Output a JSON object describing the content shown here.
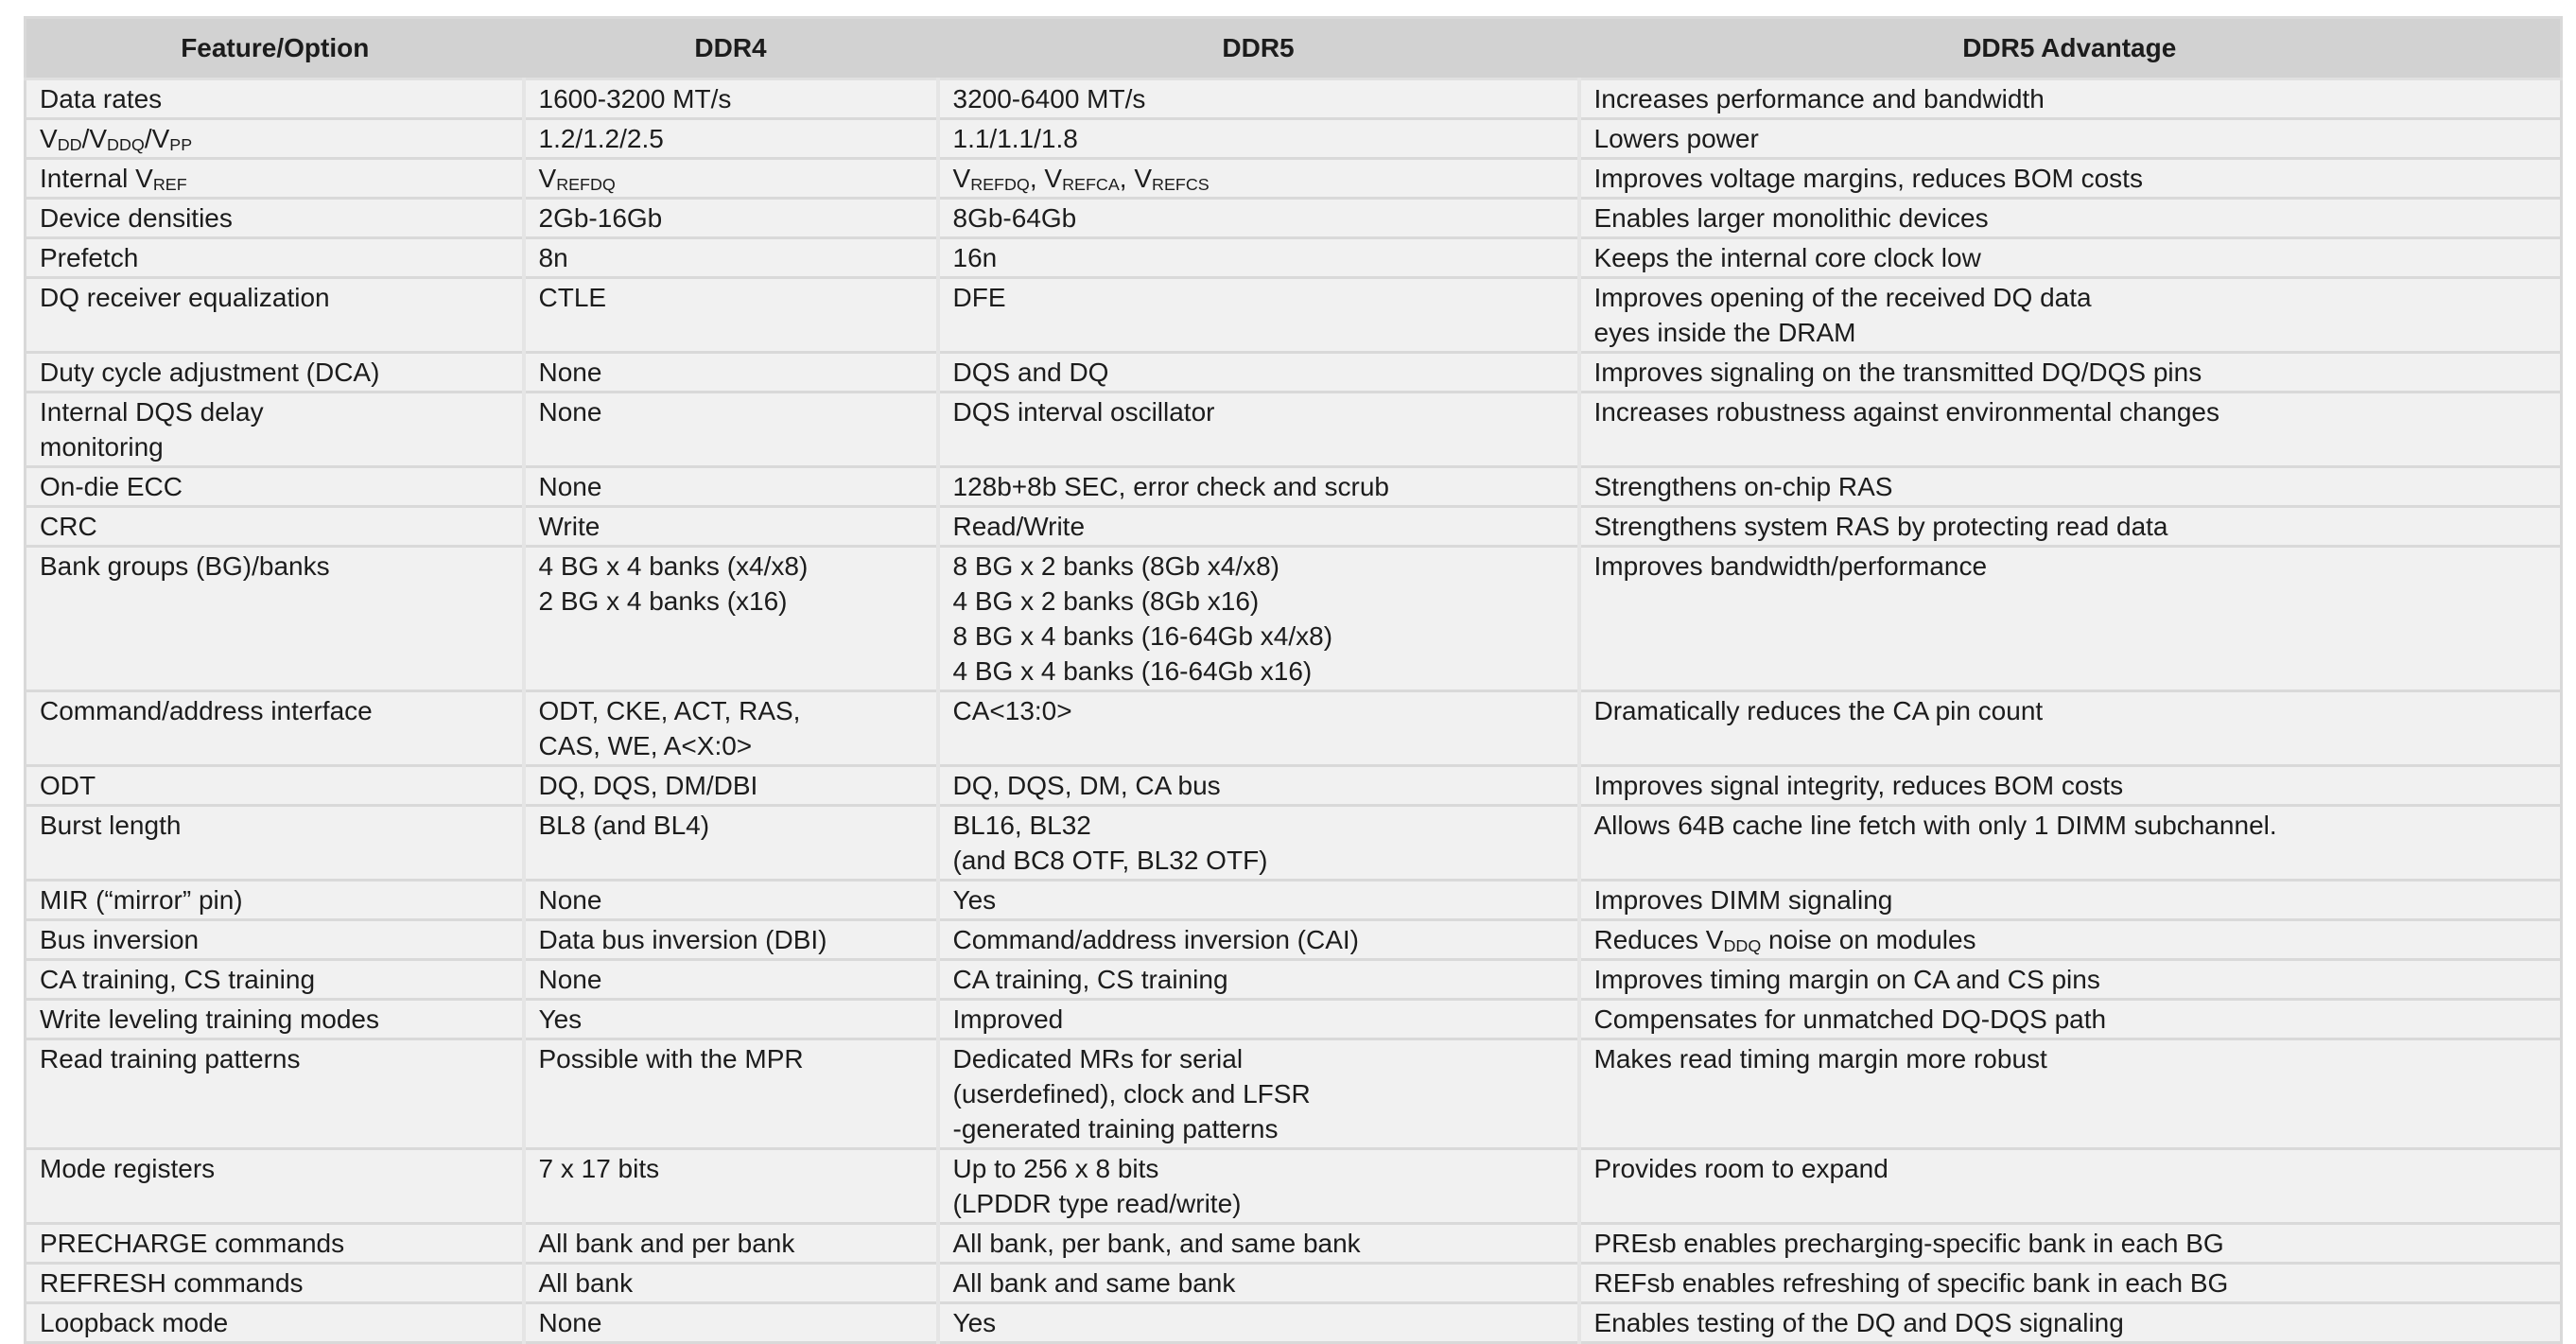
{
  "colors": {
    "header_bg": "#d2d2d2",
    "row_bg": "#f1f1f1",
    "grid_line": "#d9d9d9",
    "column_divider": "#e5e5e5",
    "text": "#1c1c1c",
    "page_bg": "#ffffff"
  },
  "table": {
    "headers": [
      "Feature/Option",
      "DDR4",
      "DDR5",
      "DDR5 Advantage"
    ],
    "rows": [
      {
        "feature": [
          [
            "Data rates"
          ]
        ],
        "ddr4": [
          [
            "1600-3200 MT/s"
          ]
        ],
        "ddr5": [
          [
            "3200-6400 MT/s"
          ]
        ],
        "advantage": [
          [
            "Increases performance and bandwidth"
          ]
        ]
      },
      {
        "feature": [
          [
            "V",
            {
              "sub": "DD"
            },
            "/V",
            {
              "sub": "DDQ"
            },
            "/V",
            {
              "sub": "PP"
            }
          ]
        ],
        "ddr4": [
          [
            "1.2/1.2/2.5"
          ]
        ],
        "ddr5": [
          [
            "1.1/1.1/1.8"
          ]
        ],
        "advantage": [
          [
            "Lowers power"
          ]
        ]
      },
      {
        "feature": [
          [
            "Internal V",
            {
              "sub": "REF"
            }
          ]
        ],
        "ddr4": [
          [
            "V",
            {
              "sub": "REFDQ"
            }
          ]
        ],
        "ddr5": [
          [
            "V",
            {
              "sub": "REFDQ"
            },
            ", V",
            {
              "sub": "REFCA"
            },
            ", V",
            {
              "sub": "REFCS"
            }
          ]
        ],
        "advantage": [
          [
            "Improves voltage margins, reduces BOM costs"
          ]
        ]
      },
      {
        "feature": [
          [
            "Device densities"
          ]
        ],
        "ddr4": [
          [
            "2Gb-16Gb"
          ]
        ],
        "ddr5": [
          [
            "8Gb-64Gb"
          ]
        ],
        "advantage": [
          [
            "Enables larger monolithic devices"
          ]
        ]
      },
      {
        "feature": [
          [
            "Prefetch"
          ]
        ],
        "ddr4": [
          [
            "8n"
          ]
        ],
        "ddr5": [
          [
            "16n"
          ]
        ],
        "advantage": [
          [
            "Keeps the internal core clock low"
          ]
        ]
      },
      {
        "feature": [
          [
            "DQ receiver equalization"
          ]
        ],
        "ddr4": [
          [
            "CTLE"
          ]
        ],
        "ddr5": [
          [
            "DFE"
          ]
        ],
        "advantage": [
          [
            "Improves opening of the received DQ data"
          ],
          [
            "eyes inside the DRAM"
          ]
        ]
      },
      {
        "feature": [
          [
            "Duty cycle adjustment (DCA)"
          ]
        ],
        "ddr4": [
          [
            "None"
          ]
        ],
        "ddr5": [
          [
            "DQS and DQ"
          ]
        ],
        "advantage": [
          [
            "Improves signaling on the transmitted DQ/DQS pins"
          ]
        ]
      },
      {
        "feature": [
          [
            "Internal DQS delay"
          ],
          [
            "monitoring"
          ]
        ],
        "ddr4": [
          [
            "None"
          ]
        ],
        "ddr5": [
          [
            "DQS interval oscillator"
          ]
        ],
        "advantage": [
          [
            "Increases robustness against environmental changes"
          ]
        ]
      },
      {
        "feature": [
          [
            "On-die ECC"
          ]
        ],
        "ddr4": [
          [
            "None"
          ]
        ],
        "ddr5": [
          [
            "128b+8b SEC, error check and scrub"
          ]
        ],
        "advantage": [
          [
            "Strengthens on-chip RAS"
          ]
        ]
      },
      {
        "feature": [
          [
            "CRC"
          ]
        ],
        "ddr4": [
          [
            "Write"
          ]
        ],
        "ddr5": [
          [
            "Read/Write"
          ]
        ],
        "advantage": [
          [
            "Strengthens system RAS by protecting read data"
          ]
        ]
      },
      {
        "feature": [
          [
            "Bank groups (BG)/banks"
          ]
        ],
        "ddr4": [
          [
            "4 BG x 4 banks (x4/x8)"
          ],
          [
            "2 BG x 4 banks (x16)"
          ]
        ],
        "ddr5": [
          [
            "8 BG x 2 banks (8Gb x4/x8)"
          ],
          [
            "4 BG x 2 banks (8Gb x16)"
          ],
          [
            "8 BG x 4 banks (16-64Gb x4/x8)"
          ],
          [
            "4 BG x 4 banks (16-64Gb x16)"
          ]
        ],
        "advantage": [
          [
            "Improves bandwidth/performance"
          ]
        ]
      },
      {
        "feature": [
          [
            "Command/address interface"
          ]
        ],
        "ddr4": [
          [
            "ODT, CKE, ACT, RAS,"
          ],
          [
            "CAS, WE, A<X:0>"
          ]
        ],
        "ddr5": [
          [
            "CA<13:0>"
          ]
        ],
        "advantage": [
          [
            "Dramatically reduces the CA pin count"
          ]
        ]
      },
      {
        "feature": [
          [
            "ODT"
          ]
        ],
        "ddr4": [
          [
            "DQ, DQS, DM/DBI"
          ]
        ],
        "ddr5": [
          [
            "DQ, DQS, DM, CA bus"
          ]
        ],
        "advantage": [
          [
            "Improves signal integrity, reduces  BOM costs"
          ]
        ]
      },
      {
        "feature": [
          [
            "Burst length"
          ]
        ],
        "ddr4": [
          [
            "BL8 (and BL4)"
          ]
        ],
        "ddr5": [
          [
            "BL16, BL32"
          ],
          [
            "(and BC8 OTF, BL32 OTF)"
          ]
        ],
        "advantage": [
          [
            "Allows 64B cache line fetch with only 1 DIMM subchannel."
          ]
        ]
      },
      {
        "feature": [
          [
            "MIR (“mirror” pin)"
          ]
        ],
        "ddr4": [
          [
            "None"
          ]
        ],
        "ddr5": [
          [
            "Yes"
          ]
        ],
        "advantage": [
          [
            "Improves DIMM signaling"
          ]
        ]
      },
      {
        "feature": [
          [
            "Bus inversion"
          ]
        ],
        "ddr4": [
          [
            "Data bus inversion (DBI)"
          ]
        ],
        "ddr5": [
          [
            "Command/address inversion (CAI)"
          ]
        ],
        "advantage": [
          [
            "Reduces V",
            {
              "sub": "DDQ"
            },
            " noise on modules"
          ]
        ]
      },
      {
        "feature": [
          [
            "CA training, CS training"
          ]
        ],
        "ddr4": [
          [
            "None"
          ]
        ],
        "ddr5": [
          [
            "CA training, CS training"
          ]
        ],
        "advantage": [
          [
            "Improves timing margin on CA and CS pins"
          ]
        ]
      },
      {
        "feature": [
          [
            "Write leveling training modes"
          ]
        ],
        "ddr4": [
          [
            "Yes"
          ]
        ],
        "ddr5": [
          [
            "Improved"
          ]
        ],
        "advantage": [
          [
            "Compensates for unmatched DQ-DQS path"
          ]
        ]
      },
      {
        "feature": [
          [
            "Read training patterns"
          ]
        ],
        "ddr4": [
          [
            "Possible with the MPR"
          ]
        ],
        "ddr5": [
          [
            "Dedicated MRs for serial"
          ],
          [
            "(userdefined), clock and LFSR"
          ],
          [
            "-generated training patterns"
          ]
        ],
        "advantage": [
          [
            "Makes read timing margin more robust"
          ]
        ]
      },
      {
        "feature": [
          [
            "Mode registers"
          ]
        ],
        "ddr4": [
          [
            "7 x 17 bits"
          ]
        ],
        "ddr5": [
          [
            "Up to 256 x 8 bits"
          ],
          [
            "(LPDDR type read/write)"
          ]
        ],
        "advantage": [
          [
            "Provides room to expand"
          ]
        ]
      },
      {
        "feature": [
          [
            "PRECHARGE commands"
          ]
        ],
        "ddr4": [
          [
            "All bank and per bank"
          ]
        ],
        "ddr5": [
          [
            "All bank, per bank, and same bank"
          ]
        ],
        "advantage": [
          [
            "PREsb enables precharging-specific bank in each BG"
          ]
        ]
      },
      {
        "feature": [
          [
            "REFRESH commands"
          ]
        ],
        "ddr4": [
          [
            "All bank"
          ]
        ],
        "ddr5": [
          [
            "All bank and same bank"
          ]
        ],
        "advantage": [
          [
            "REFsb enables refreshing of specific bank in each BG"
          ]
        ]
      },
      {
        "feature": [
          [
            "Loopback mode"
          ]
        ],
        "ddr4": [
          [
            "None"
          ]
        ],
        "ddr5": [
          [
            "Yes"
          ]
        ],
        "advantage": [
          [
            "Enables testing of the DQ and DQS signaling"
          ]
        ]
      }
    ]
  }
}
